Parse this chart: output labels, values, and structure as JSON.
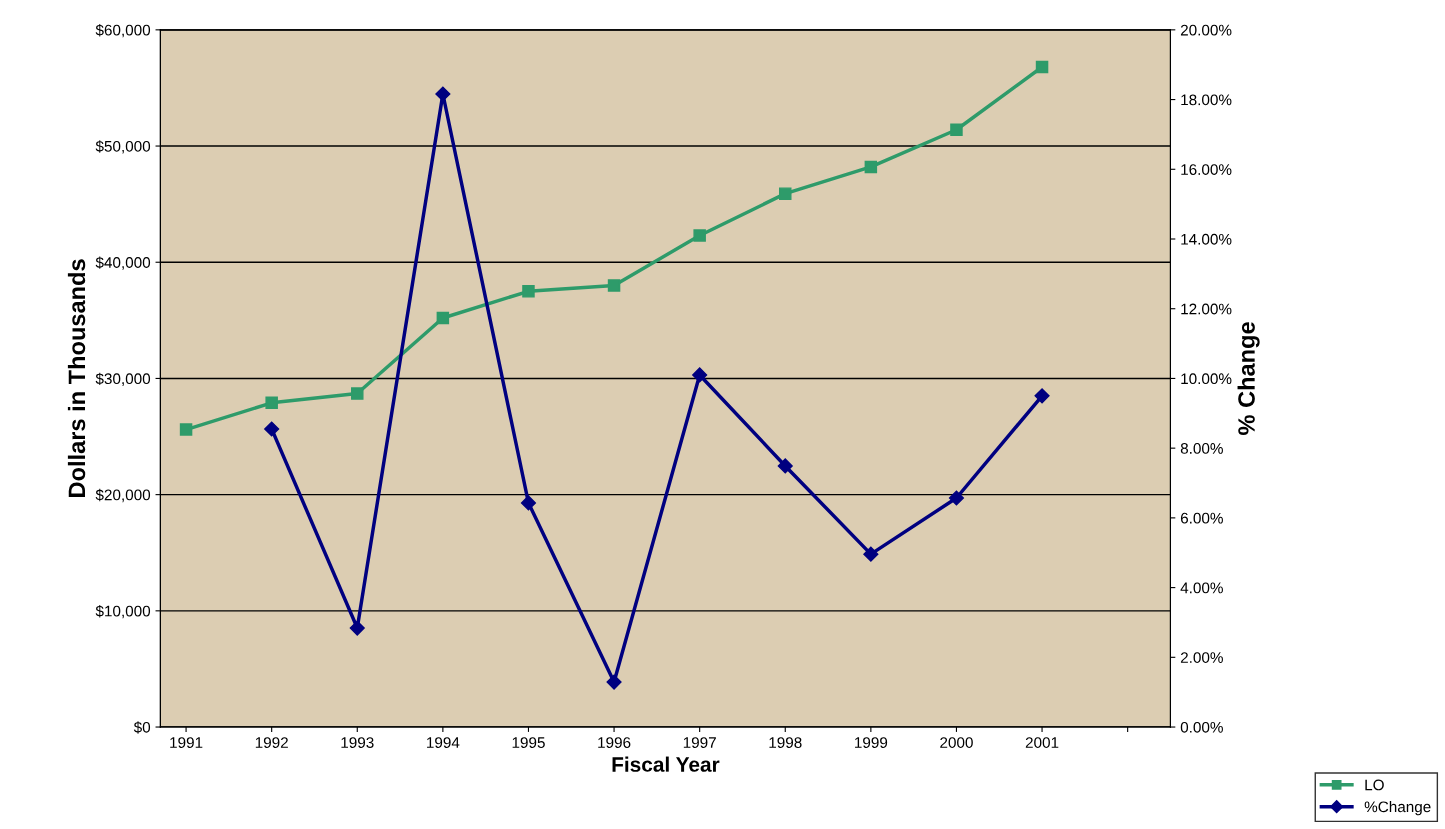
{
  "chart_data": {
    "type": "line",
    "xlabel": "Fiscal Year",
    "ylabel": "Dollars in Thousands",
    "y2label": "% Change",
    "categories": [
      "1991",
      "1992",
      "1993",
      "1994",
      "1995",
      "1996",
      "1997",
      "1998",
      "1999",
      "2000",
      "2001",
      null
    ],
    "series": [
      {
        "name": "LO",
        "color": "#2e9b6a",
        "marker": "square",
        "values": [
          25600,
          27900,
          28700,
          35200,
          37500,
          38000,
          42300,
          45900,
          48200,
          51400,
          56800,
          null
        ]
      },
      {
        "name": "%Change",
        "color": "#000080",
        "marker": "diamond",
        "axis": "y2",
        "values": [
          null,
          8.55,
          2.84,
          18.16,
          6.43,
          1.29,
          10.1,
          7.49,
          4.96,
          6.57,
          9.5,
          null
        ]
      }
    ],
    "ylim": [
      0,
      60000
    ],
    "yticks": [
      {
        "value": 0,
        "label": "$0"
      },
      {
        "value": 10000,
        "label": "$10,000"
      },
      {
        "value": 20000,
        "label": "$20,000"
      },
      {
        "value": 30000,
        "label": "$30,000"
      },
      {
        "value": 40000,
        "label": "$40,000"
      },
      {
        "value": 50000,
        "label": "$50,000"
      },
      {
        "value": 60000,
        "label": "$60,000"
      }
    ],
    "y2lim": [
      0,
      20
    ],
    "y2ticks": [
      {
        "value": 0,
        "label": "0.00%"
      },
      {
        "value": 2,
        "label": "2.00%"
      },
      {
        "value": 4,
        "label": "4.00%"
      },
      {
        "value": 6,
        "label": "6.00%"
      },
      {
        "value": 8,
        "label": "8.00%"
      },
      {
        "value": 10,
        "label": "10.00%"
      },
      {
        "value": 12,
        "label": "12.00%"
      },
      {
        "value": 14,
        "label": "14.00%"
      },
      {
        "value": 16,
        "label": "16.00%"
      },
      {
        "value": 18,
        "label": "18.00%"
      },
      {
        "value": 20,
        "label": "20.00%"
      }
    ],
    "grid": "y",
    "legend": "bottom right",
    "line_style": "solid"
  }
}
